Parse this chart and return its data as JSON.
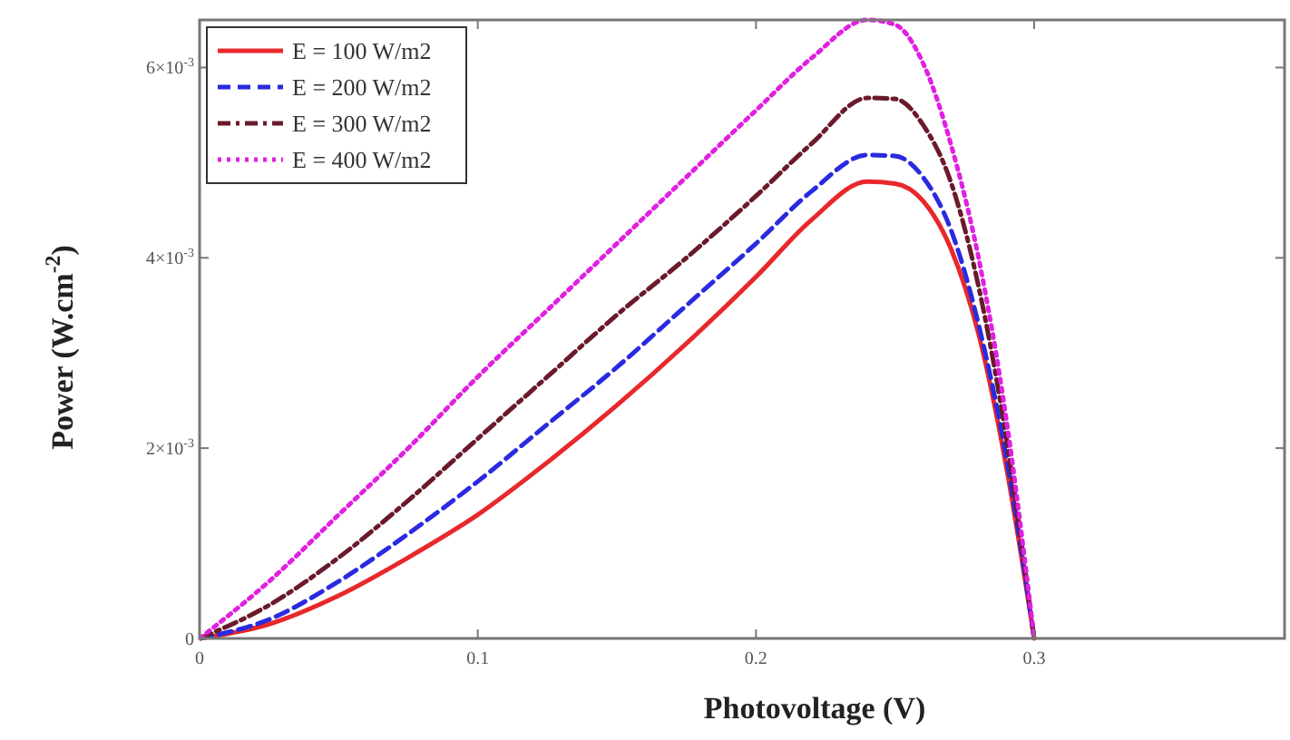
{
  "chart_data": {
    "type": "line",
    "xlabel": "Photovoltage (V)",
    "ylabel": "Power (W.cm$^{-2}$)",
    "xlim": [
      0,
      0.39
    ],
    "ylim": [
      0,
      0.0065
    ],
    "xticks": [
      0,
      0.1,
      0.2,
      0.3
    ],
    "yticks": [
      0,
      {
        "value": 0.002,
        "label": "2×10$^{-3}$"
      },
      {
        "value": 0.004,
        "label": "4×10$^{-3}$"
      },
      {
        "value": 0.006,
        "label": "6×10$^{-3}$"
      }
    ],
    "x": [
      0,
      0.025,
      0.05,
      0.075,
      0.1,
      0.125,
      0.15,
      0.175,
      0.2,
      0.22,
      0.24,
      0.25,
      0.26,
      0.27,
      0.28,
      0.29,
      0.3
    ],
    "legend": "top left",
    "grid": false,
    "marker": "none",
    "series": [
      {
        "name": "E = 100 W/m2",
        "color": "#e8282b",
        "line_style": "solid",
        "values": [
          0,
          0.00015,
          0.00045,
          0.00085,
          0.0013,
          0.00185,
          0.00245,
          0.0031,
          0.0038,
          0.0044,
          0.0048,
          0.00478,
          0.0046,
          0.0041,
          0.0032,
          0.0018,
          0
        ]
      },
      {
        "name": "E = 200 W/m2",
        "color": "#2a2ae0",
        "line_style": "dashed",
        "values": [
          0,
          0.0002,
          0.0006,
          0.0011,
          0.00165,
          0.00225,
          0.00285,
          0.0035,
          0.00415,
          0.0047,
          0.00508,
          0.00507,
          0.00485,
          0.0043,
          0.0033,
          0.0019,
          0
        ]
      },
      {
        "name": "E = 300 W/m2",
        "color": "#6a1a2a",
        "line_style": "dashdot",
        "values": [
          0,
          0.00035,
          0.00085,
          0.00145,
          0.0021,
          0.00275,
          0.0034,
          0.004,
          0.00465,
          0.0052,
          0.00568,
          0.00567,
          0.0054,
          0.0048,
          0.0037,
          0.0021,
          0
        ]
      },
      {
        "name": "E = 400 W/m2",
        "color": "#e020e0",
        "line_style": "dotted",
        "values": [
          0,
          0.0006,
          0.0013,
          0.002,
          0.00275,
          0.00345,
          0.00415,
          0.00485,
          0.00555,
          0.0061,
          0.0065,
          0.00645,
          0.00605,
          0.0052,
          0.004,
          0.0023,
          0
        ]
      }
    ]
  }
}
